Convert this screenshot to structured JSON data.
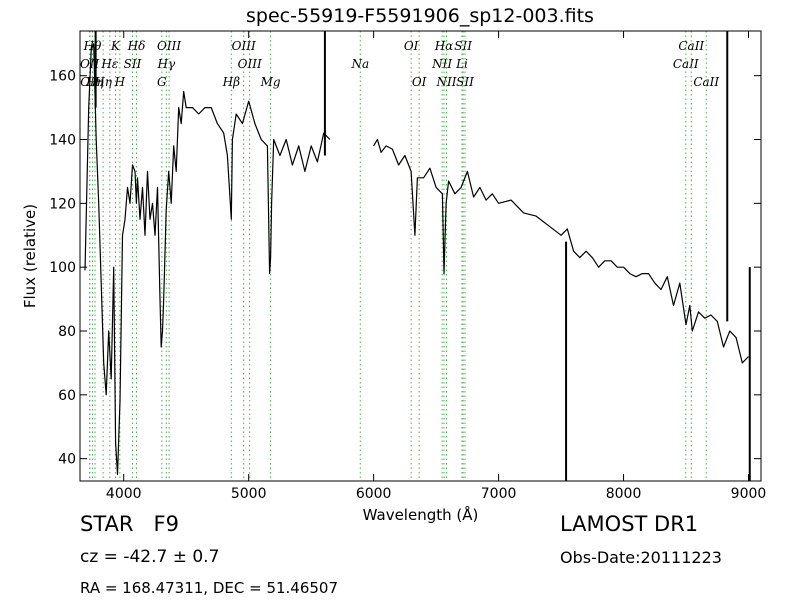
{
  "chart_data": {
    "type": "line",
    "title": "spec-55919-F5591906_sp12-003.fits",
    "xlabel": "Wavelength (Å)",
    "ylabel": "Flux (relative)",
    "xlim": [
      3650,
      9100
    ],
    "ylim": [
      33,
      174
    ],
    "x_ticks": [
      4000,
      5000,
      6000,
      7000,
      8000,
      9000
    ],
    "x_tick_labels": [
      "4000",
      "5000",
      "6000",
      "7000",
      "8000",
      "9000"
    ],
    "y_ticks": [
      40,
      60,
      80,
      100,
      120,
      140,
      160
    ],
    "y_tick_labels": [
      "40",
      "60",
      "80",
      "100",
      "120",
      "140",
      "160"
    ],
    "grid": false,
    "series": [
      {
        "color": "#000000",
        "x": [
          3690,
          3720,
          3740,
          3760,
          3780,
          3800,
          3820,
          3840,
          3860,
          3880,
          3900,
          3920,
          3935,
          3950,
          3970,
          3990,
          4010,
          4030,
          4050,
          4070,
          4090,
          4101,
          4110,
          4130,
          4150,
          4170,
          4190,
          4210,
          4230,
          4250,
          4270,
          4290,
          4300,
          4310,
          4320,
          4340,
          4360,
          4380,
          4400,
          4420,
          4440,
          4460,
          4480,
          4500,
          4550,
          4600,
          4650,
          4700,
          4750,
          4800,
          4830,
          4861,
          4870,
          4900,
          4950,
          5000,
          5050,
          5100,
          5150,
          5167,
          5175,
          5183,
          5200,
          5250,
          5300,
          5350,
          5400,
          5450,
          5500,
          5550,
          5600,
          5650
        ],
        "y": [
          99,
          150,
          168,
          170,
          140,
          120,
          95,
          70,
          60,
          80,
          65,
          100,
          45,
          35,
          58,
          110,
          115,
          125,
          120,
          132,
          130,
          120,
          128,
          115,
          125,
          110,
          130,
          115,
          120,
          110,
          125,
          90,
          75,
          80,
          90,
          118,
          130,
          120,
          138,
          130,
          150,
          145,
          155,
          150,
          150,
          148,
          150,
          150,
          145,
          142,
          135,
          115,
          140,
          148,
          145,
          152,
          145,
          140,
          138,
          98,
          103,
          120,
          140,
          135,
          140,
          132,
          138,
          130,
          138,
          133,
          142,
          140
        ]
      },
      {
        "color": "#000000",
        "x": [
          6000,
          6030,
          6060,
          6100,
          6150,
          6200,
          6250,
          6300,
          6330,
          6350,
          6400,
          6450,
          6500,
          6550,
          6563,
          6580,
          6600,
          6650,
          6700,
          6750,
          6800,
          6850,
          6900,
          6950,
          7000,
          7100,
          7200,
          7300,
          7400,
          7500,
          7550,
          7600,
          7650,
          7700,
          7750,
          7800,
          7850,
          7900,
          7950,
          8000,
          8050,
          8100,
          8150,
          8200,
          8250,
          8300,
          8350,
          8400,
          8450,
          8500,
          8530,
          8550,
          8600,
          8650,
          8700,
          8750,
          8800,
          8850,
          8900,
          8950,
          9000
        ],
        "y": [
          138,
          140,
          136,
          138,
          137,
          132,
          135,
          130,
          110,
          128,
          128,
          131,
          125,
          123,
          98,
          120,
          127,
          123,
          125,
          130,
          122,
          125,
          121,
          123,
          120,
          121,
          117,
          116,
          113,
          110,
          112,
          105,
          103,
          105,
          103,
          100,
          102,
          102,
          100,
          100,
          98,
          97,
          98,
          98,
          95,
          93,
          97,
          88,
          95,
          82,
          88,
          80,
          86,
          84,
          85,
          83,
          75,
          80,
          78,
          70,
          72
        ]
      }
    ],
    "spikes": [
      {
        "x": 3775,
        "y_from": 150,
        "y_to": 174
      },
      {
        "x": 5610,
        "y_from": 135,
        "y_to": 174
      },
      {
        "x": 7540,
        "y_from": 33,
        "y_to": 108
      },
      {
        "x": 8830,
        "y_from": 83,
        "y_to": 174
      },
      {
        "x": 9010,
        "y_from": 33,
        "y_to": 100
      }
    ],
    "spectral_lines": [
      {
        "x": 3727,
        "label": "OII",
        "row": 2
      },
      {
        "x": 3729,
        "label": "OII",
        "row": 3
      },
      {
        "x": 3750,
        "label": "Hθ",
        "row": 1
      },
      {
        "x": 3770,
        "label": "Hη",
        "row": 3
      },
      {
        "x": 3835,
        "label": "Hη",
        "row": 3
      },
      {
        "x": 3889,
        "label": "Hε",
        "row": 2
      },
      {
        "x": 3934,
        "label": "K",
        "row": 1
      },
      {
        "x": 3969,
        "label": "H",
        "row": 3
      },
      {
        "x": 4070,
        "label": "SII",
        "row": 2
      },
      {
        "x": 4102,
        "label": "Hδ",
        "row": 1
      },
      {
        "x": 4305,
        "label": "G",
        "row": 3
      },
      {
        "x": 4341,
        "label": "Hγ",
        "row": 2
      },
      {
        "x": 4363,
        "label": "OIII",
        "row": 1
      },
      {
        "x": 4861,
        "label": "Hβ",
        "row": 3
      },
      {
        "x": 4960,
        "label": "OIII",
        "row": 1
      },
      {
        "x": 5008,
        "label": "OIII",
        "row": 2
      },
      {
        "x": 5175,
        "label": "Mg",
        "row": 3
      },
      {
        "x": 5893,
        "label": "Na",
        "row": 2
      },
      {
        "x": 6300,
        "label": "OI",
        "row": 1
      },
      {
        "x": 6364,
        "label": "OI",
        "row": 3
      },
      {
        "x": 6548,
        "label": "NII",
        "row": 2
      },
      {
        "x": 6563,
        "label": "Hα",
        "row": 1
      },
      {
        "x": 6583,
        "label": "NII",
        "row": 3
      },
      {
        "x": 6707,
        "label": "Li",
        "row": 2
      },
      {
        "x": 6716,
        "label": "SII",
        "row": 1
      },
      {
        "x": 6731,
        "label": "SII",
        "row": 3
      },
      {
        "x": 8498,
        "label": "CaII",
        "row": 2
      },
      {
        "x": 8542,
        "label": "CaII",
        "row": 1
      },
      {
        "x": 8662,
        "label": "CaII",
        "row": 3
      }
    ]
  },
  "info": {
    "class_label": "STAR",
    "subclass_label": "F9",
    "cz_text": "cz = -42.7  ± 0.7",
    "radec_text": "RA = 168.47311, DEC = 51.46507",
    "survey_text": "LAMOST DR1",
    "obsdate_text": "Obs-Date:20111223"
  }
}
